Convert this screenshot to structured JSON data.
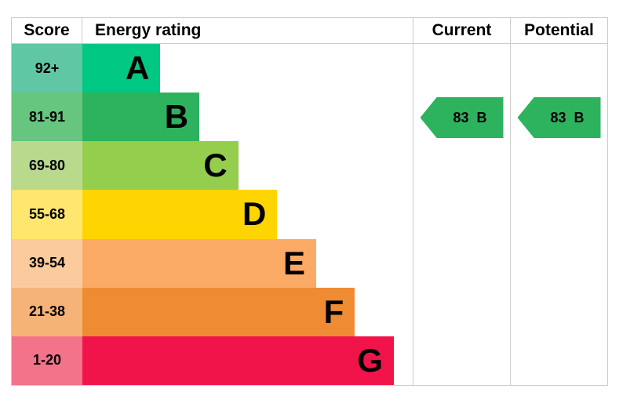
{
  "header": {
    "score": "Score",
    "energy_rating": "Energy rating",
    "current": "Current",
    "potential": "Potential"
  },
  "rows": [
    {
      "score": "92+",
      "letter": "A",
      "bar_color": "#00c781",
      "score_color": "#5fc7a3",
      "bar_width_pct": 23.6
    },
    {
      "score": "81-91",
      "letter": "B",
      "bar_color": "#2db25e",
      "score_color": "#66c57e",
      "bar_width_pct": 35.4
    },
    {
      "score": "69-80",
      "letter": "C",
      "bar_color": "#94ce4c",
      "score_color": "#b9da8d",
      "bar_width_pct": 47.2
    },
    {
      "score": "55-68",
      "letter": "D",
      "bar_color": "#ffd500",
      "score_color": "#ffe66e",
      "bar_width_pct": 59.0
    },
    {
      "score": "39-54",
      "letter": "E",
      "bar_color": "#fbaa65",
      "score_color": "#fccb9d",
      "bar_width_pct": 70.8
    },
    {
      "score": "21-38",
      "letter": "F",
      "bar_color": "#ef8b33",
      "score_color": "#f5b377",
      "bar_width_pct": 82.5
    },
    {
      "score": "1-20",
      "letter": "G",
      "bar_color": "#f0144a",
      "score_color": "#f2738a",
      "bar_width_pct": 94.3
    }
  ],
  "current": {
    "value": "83",
    "letter": "B",
    "color": "#2db25e"
  },
  "potential": {
    "value": "83",
    "letter": "B",
    "color": "#2db25e"
  },
  "chart_data": {
    "type": "bar",
    "title": "Energy rating",
    "categories": [
      "A",
      "B",
      "C",
      "D",
      "E",
      "F",
      "G"
    ],
    "score_ranges": [
      "92+",
      "81-91",
      "69-80",
      "55-68",
      "39-54",
      "21-38",
      "1-20"
    ],
    "bar_lengths_relative": [
      1,
      1.5,
      2,
      2.5,
      3,
      3.5,
      4
    ],
    "current": {
      "score": 83,
      "rating": "B"
    },
    "potential": {
      "score": 83,
      "rating": "B"
    },
    "grid": false,
    "legend_position": "none"
  }
}
